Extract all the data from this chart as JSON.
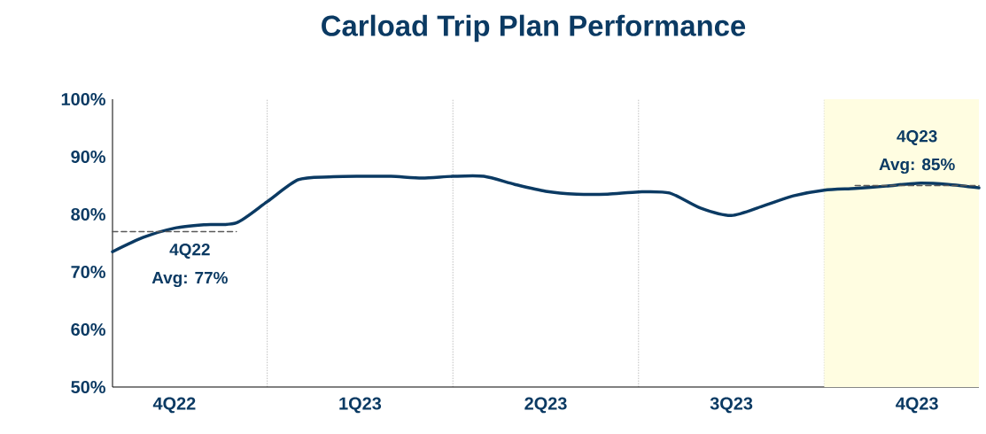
{
  "chart_data": {
    "type": "line",
    "title": "Carload Trip Plan Performance",
    "categories": [
      null,
      null,
      "4Q22",
      null,
      null,
      null,
      null,
      null,
      "1Q23",
      null,
      null,
      null,
      null,
      null,
      "2Q23",
      null,
      null,
      null,
      null,
      null,
      "3Q23",
      null,
      null,
      null,
      null,
      null,
      "4Q23",
      null,
      null
    ],
    "ylim": [
      50,
      100
    ],
    "yticks": [
      {
        "value": 50,
        "label": "50%"
      },
      {
        "value": 60,
        "label": "60%"
      },
      {
        "value": 70,
        "label": "70%"
      },
      {
        "value": 80,
        "label": "80%"
      },
      {
        "value": 90,
        "label": "90%"
      },
      {
        "value": 100,
        "label": "100%"
      }
    ],
    "grid": "x",
    "marker": "none",
    "series": [
      {
        "color": "#0b3a63",
        "line_style": "solid",
        "values": [
          73.5,
          76,
          77.6,
          78.2,
          78.5,
          82.2,
          86,
          86.5,
          86.6,
          86.6,
          86.3,
          86.6,
          86.6,
          85.2,
          84,
          83.5,
          83.5,
          83.9,
          83.7,
          81.1,
          79.8,
          81.4,
          83.2,
          84.2,
          84.5,
          84.9,
          85.4,
          85.2,
          84.6
        ]
      },
      {
        "color": "#595959",
        "line_style": "dashed",
        "values": [
          77,
          77,
          77,
          77,
          77,
          null,
          null,
          null,
          null,
          null,
          null,
          null,
          null,
          null,
          null,
          null,
          null,
          null,
          null,
          null,
          null,
          null,
          null,
          null,
          null,
          null,
          null,
          null,
          null
        ]
      },
      {
        "color": "#595959",
        "line_style": "dashed",
        "values": [
          null,
          null,
          null,
          null,
          null,
          null,
          null,
          null,
          null,
          null,
          null,
          null,
          null,
          null,
          null,
          null,
          null,
          null,
          null,
          null,
          null,
          null,
          null,
          null,
          85,
          85,
          85,
          85,
          85
        ]
      }
    ],
    "annotations": [
      "4Q22",
      "Avg: 77%",
      "4Q23",
      "Avg: 85%"
    ]
  }
}
